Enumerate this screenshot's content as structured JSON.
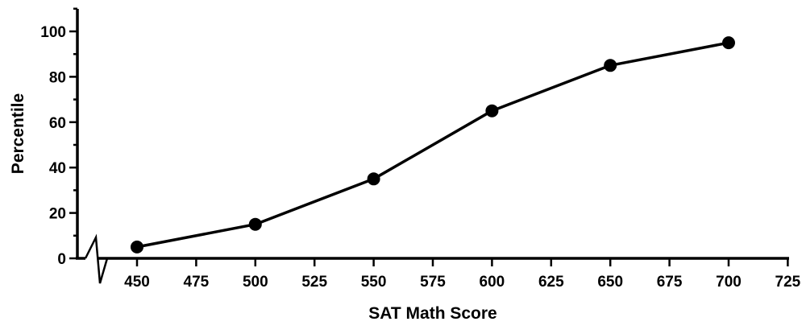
{
  "chart_data": {
    "type": "line",
    "xlabel": "SAT Math Score",
    "ylabel": "Percentile",
    "x": [
      450,
      500,
      550,
      600,
      650,
      700
    ],
    "series": [
      {
        "values": [
          5,
          15,
          35,
          65,
          85,
          95
        ]
      }
    ],
    "xlim": [
      425,
      725
    ],
    "ylim": [
      0,
      110
    ],
    "x_ticks": [
      "450",
      "475",
      "500",
      "525",
      "550",
      "575",
      "600",
      "625",
      "650",
      "675",
      "700",
      "725"
    ],
    "y_ticks": [
      "0",
      "20",
      "40",
      "60",
      "80",
      "100"
    ],
    "axis_break": "x",
    "grid": false,
    "legend": "none",
    "colors": {
      "line": "#000000",
      "marker": "#000000",
      "axis": "#000000"
    }
  }
}
